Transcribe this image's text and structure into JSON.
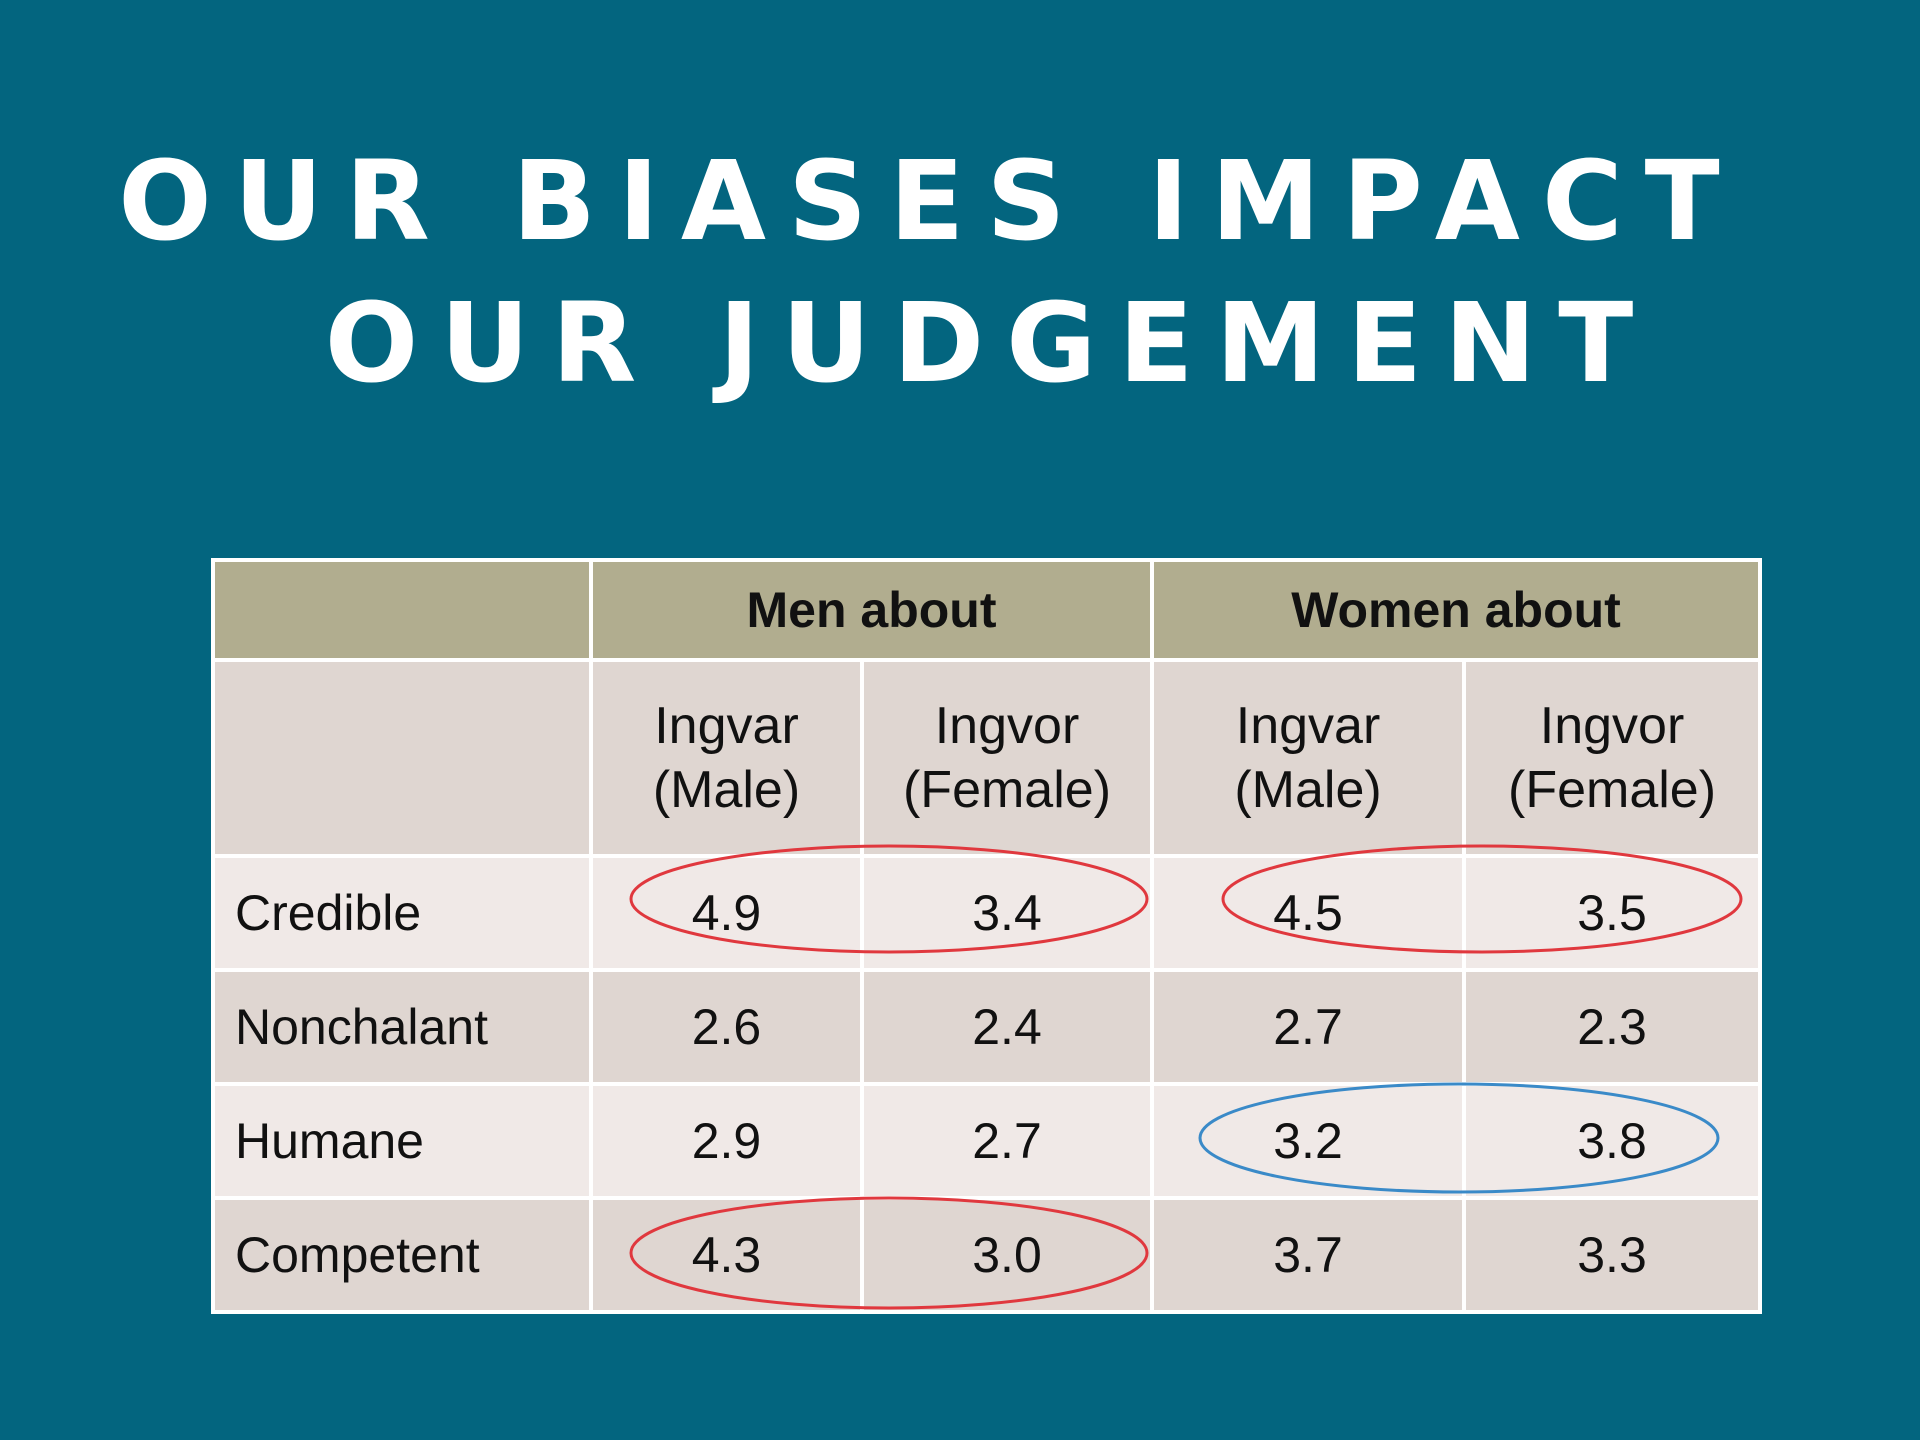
{
  "title": {
    "line1": "OUR BIASES IMPACT",
    "line2": "OUR JUDGEMENT"
  },
  "table": {
    "group_headers": [
      "Men about",
      "Women about"
    ],
    "sub_headers": [
      {
        "name": "Ingvar",
        "gender": "(Male)"
      },
      {
        "name": "Ingvor",
        "gender": "(Female)"
      },
      {
        "name": "Ingvar",
        "gender": "(Male)"
      },
      {
        "name": "Ingvor",
        "gender": "(Female)"
      }
    ],
    "rows": [
      {
        "label": "Credible",
        "values": [
          "4.9",
          "3.4",
          "4.5",
          "3.5"
        ]
      },
      {
        "label": "Nonchalant",
        "values": [
          "2.6",
          "2.4",
          "2.7",
          "2.3"
        ]
      },
      {
        "label": "Humane",
        "values": [
          "2.9",
          "2.7",
          "3.2",
          "3.8"
        ]
      },
      {
        "label": "Competent",
        "values": [
          "4.3",
          "3.0",
          "3.7",
          "3.3"
        ]
      }
    ]
  },
  "highlight_colors": {
    "red": "#e0383e",
    "blue": "#3a8ac8"
  }
}
